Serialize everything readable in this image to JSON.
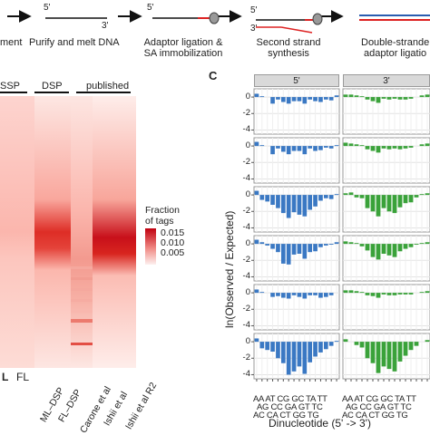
{
  "workflow": {
    "steps": [
      {
        "label": "ment"
      },
      {
        "label": "Purify and melt DNA"
      },
      {
        "label": "Adaptor ligation &\nSA immobilization"
      },
      {
        "label": "Second strand\nsynthesis"
      },
      {
        "label": "Double-strande\nadaptor ligatio"
      }
    ],
    "end_labels": {
      "five_prime": "5'",
      "three_prime": "3'"
    }
  },
  "heatmap": {
    "groups": [
      "SSP",
      "DSP",
      "published"
    ],
    "columns": [
      "L",
      "FL",
      "ML–DSP",
      "FL–DSP",
      "Carone et al",
      "Ishii et al",
      "Ishii et al R2"
    ],
    "legend": {
      "title": "Fraction\nof tags",
      "ticks": [
        "0.015",
        "0.010",
        "0.005"
      ],
      "colors": {
        "low": "#fdeeee",
        "mid": "#f08a84",
        "high": "#b7000e"
      }
    }
  },
  "panel_c": {
    "label": "C",
    "ylabel": "ln(Observed / Expected)",
    "xlabel": "Dinucleotide (5' -> 3')",
    "strips": [
      "5'",
      "3'"
    ],
    "y_ticks": [
      "0",
      "-2",
      "-4"
    ],
    "x_ticks_row1": [
      "AA",
      "AT",
      "CG",
      "GC",
      "TA",
      "TT"
    ],
    "x_ticks_row2": [
      "AC",
      "AG",
      "CA",
      "CC",
      "CT",
      "GA",
      "GG",
      "GT",
      "TC",
      "TG"
    ],
    "x_tick_line1": "AA AT CG GC TA TT",
    "x_tick_line2": "AG CC GA GT TC",
    "x_tick_line3": "AC CA CT GG TG",
    "colors": {
      "five_prime": "#3a78c3",
      "three_prime": "#3aa23a"
    }
  },
  "chart_data": {
    "type": "bar",
    "categories": [
      "AA",
      "AC",
      "AG",
      "AT",
      "CA",
      "CC",
      "CG",
      "CT",
      "GA",
      "GC",
      "GG",
      "GT",
      "TA",
      "TC",
      "TG",
      "TT"
    ],
    "ylim": [
      -4.5,
      1
    ],
    "series": [
      {
        "name": "5'",
        "rows": [
          [
            0.4,
            0.1,
            0.0,
            -0.8,
            -0.3,
            -0.6,
            -0.8,
            -0.5,
            -0.5,
            -0.8,
            -0.3,
            -0.5,
            -0.6,
            -0.3,
            -0.4,
            0.2
          ],
          [
            0.5,
            0.1,
            0.0,
            -1.0,
            -0.3,
            -0.7,
            -1.0,
            -0.6,
            -0.6,
            -1.0,
            -0.3,
            -0.6,
            -0.5,
            -0.2,
            -0.3,
            0.1
          ],
          [
            0.5,
            -0.6,
            -0.8,
            -1.2,
            -1.6,
            -2.2,
            -2.8,
            -2.1,
            -2.4,
            -2.6,
            -1.8,
            -1.4,
            -0.7,
            -0.4,
            -0.5,
            0.1
          ],
          [
            0.5,
            0.2,
            -0.2,
            -0.6,
            -1.0,
            -2.4,
            -2.5,
            -1.3,
            -1.2,
            -1.8,
            -1.0,
            -0.9,
            -0.4,
            -0.2,
            -0.1,
            0.2
          ],
          [
            0.4,
            0.1,
            0.0,
            -0.5,
            -0.4,
            -0.6,
            -0.7,
            -0.3,
            -0.5,
            -0.7,
            -0.3,
            -0.3,
            -0.6,
            -0.5,
            -0.3,
            0.0
          ],
          [
            0.4,
            -0.8,
            -1.0,
            -1.2,
            -2.0,
            -2.6,
            -4.0,
            -3.6,
            -3.0,
            -3.9,
            -2.5,
            -1.8,
            -1.3,
            -0.9,
            -0.5,
            0.1
          ]
        ]
      },
      {
        "name": "3'",
        "rows": [
          [
            0.3,
            0.3,
            0.2,
            0.1,
            -0.3,
            -0.5,
            -0.7,
            -0.2,
            -0.3,
            -0.2,
            -0.3,
            -0.3,
            -0.2,
            0.0,
            0.2,
            0.3
          ],
          [
            0.4,
            0.3,
            0.2,
            0.1,
            -0.4,
            -0.6,
            -0.8,
            -0.3,
            -0.4,
            -0.3,
            -0.4,
            -0.3,
            -0.2,
            0.0,
            0.2,
            0.3
          ],
          [
            0.2,
            0.3,
            -0.3,
            -0.4,
            -1.6,
            -2.0,
            -2.6,
            -1.6,
            -2.0,
            -2.2,
            -1.5,
            -1.0,
            -0.9,
            -0.3,
            0.1,
            0.2
          ],
          [
            0.3,
            0.2,
            0.1,
            -0.3,
            -0.8,
            -1.6,
            -1.9,
            -1.2,
            -1.4,
            -1.6,
            -0.9,
            -0.6,
            -0.4,
            -0.1,
            0.1,
            0.2
          ],
          [
            0.3,
            0.3,
            0.2,
            0.1,
            -0.3,
            -0.4,
            -0.6,
            -0.2,
            -0.3,
            -0.3,
            -0.2,
            -0.2,
            -0.2,
            0.0,
            0.1,
            0.2
          ],
          [
            0.3,
            0.0,
            -0.4,
            -0.7,
            -2.0,
            -2.6,
            -3.8,
            -3.0,
            -3.3,
            -3.6,
            -2.4,
            -1.7,
            -1.0,
            -0.5,
            0.0,
            0.2
          ]
        ]
      }
    ]
  }
}
